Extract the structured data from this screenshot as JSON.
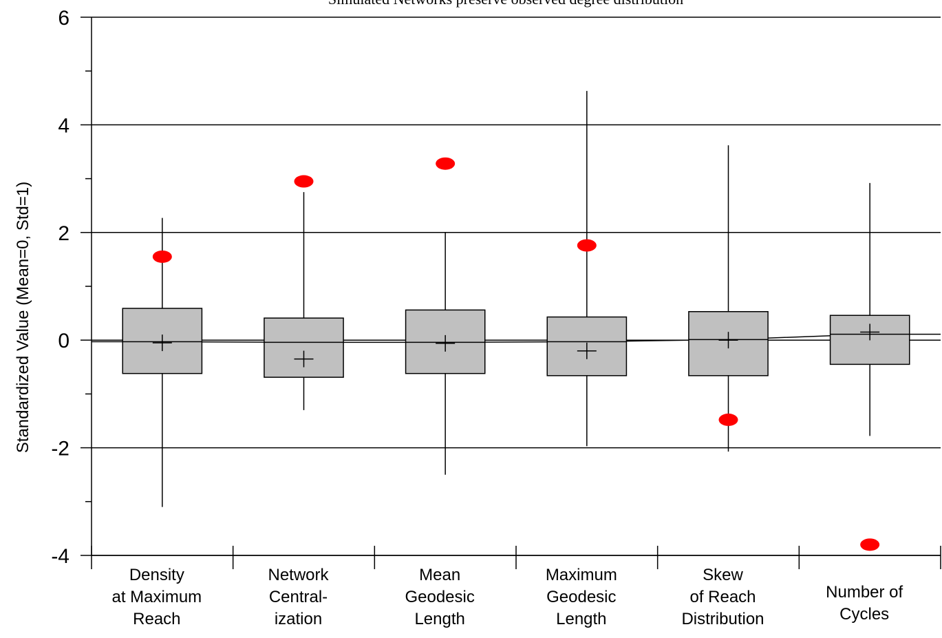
{
  "chart_data": {
    "type": "box",
    "title": "Simulated Networks preserve observed degree distribution",
    "ylabel": "Standardized Value (Mean=0, Std=1)",
    "xlabel": "",
    "ylim": [
      -4,
      6
    ],
    "yticks": [
      6,
      4,
      2,
      0,
      -2,
      -4
    ],
    "ytick_labels": [
      "6",
      "4",
      "2",
      "0",
      "-2",
      "-4"
    ],
    "grid": "horizontal",
    "colors": {
      "box_fill": "#c0c0c0",
      "observed": "#ff0000",
      "line": "#000000"
    },
    "categories": [
      [
        "Density",
        "at Maximum",
        "Reach"
      ],
      [
        "Network",
        "Central-",
        "ization"
      ],
      [
        "Mean",
        "Geodesic",
        "Length"
      ],
      [
        "Maximum",
        "Geodesic",
        "Length"
      ],
      [
        "Skew",
        "of Reach",
        "Distribution"
      ],
      [
        "Number of",
        "Cycles"
      ]
    ],
    "boxes": [
      {
        "whisker_low": -3.1,
        "q1": -0.62,
        "median": -0.03,
        "mean": -0.05,
        "q3": 0.59,
        "whisker_high": 2.27,
        "observed": 1.55
      },
      {
        "whisker_low": -1.3,
        "q1": -0.69,
        "median": -0.04,
        "mean": -0.35,
        "q3": 0.41,
        "whisker_high": 2.75,
        "observed": 2.95
      },
      {
        "whisker_low": -2.5,
        "q1": -0.62,
        "median": -0.04,
        "mean": -0.06,
        "q3": 0.56,
        "whisker_high": 2.0,
        "observed": 3.28
      },
      {
        "whisker_low": -1.97,
        "q1": -0.66,
        "median": -0.03,
        "mean": -0.2,
        "q3": 0.43,
        "whisker_high": 4.63,
        "observed": 1.76
      },
      {
        "whisker_low": -2.07,
        "q1": -0.66,
        "median": 0.01,
        "mean": 0.0,
        "q3": 0.53,
        "whisker_high": 3.62,
        "observed": -1.48
      },
      {
        "whisker_low": -1.78,
        "q1": -0.45,
        "median": 0.11,
        "mean": 0.15,
        "q3": 0.46,
        "whisker_high": 2.92,
        "observed": -3.8
      }
    ]
  }
}
